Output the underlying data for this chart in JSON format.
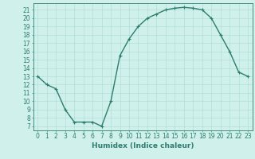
{
  "x": [
    0,
    1,
    2,
    3,
    4,
    5,
    6,
    7,
    8,
    9,
    10,
    11,
    12,
    13,
    14,
    15,
    16,
    17,
    18,
    19,
    20,
    21,
    22,
    23
  ],
  "y": [
    13,
    12,
    11.5,
    9,
    7.5,
    7.5,
    7.5,
    7,
    10,
    15.5,
    17.5,
    19,
    20,
    20.5,
    21,
    21.2,
    21.3,
    21.2,
    21,
    20,
    18,
    16,
    13.5,
    13
  ],
  "line_color": "#2e7d6e",
  "marker": "+",
  "marker_size": 3,
  "bg_color": "#cff0eb",
  "grid_color": "#aaddd7",
  "xlabel": "Humidex (Indice chaleur)",
  "xlim": [
    -0.5,
    23.5
  ],
  "ylim": [
    6.5,
    21.8
  ],
  "yticks": [
    7,
    8,
    9,
    10,
    11,
    12,
    13,
    14,
    15,
    16,
    17,
    18,
    19,
    20,
    21
  ],
  "xticks": [
    0,
    1,
    2,
    3,
    4,
    5,
    6,
    7,
    8,
    9,
    10,
    11,
    12,
    13,
    14,
    15,
    16,
    17,
    18,
    19,
    20,
    21,
    22,
    23
  ],
  "tick_color": "#2e7d6e",
  "axis_color": "#2e7d6e",
  "tick_fontsize": 5.5,
  "xlabel_fontsize": 6.5,
  "linewidth": 1.0,
  "marker_edge_width": 0.8
}
